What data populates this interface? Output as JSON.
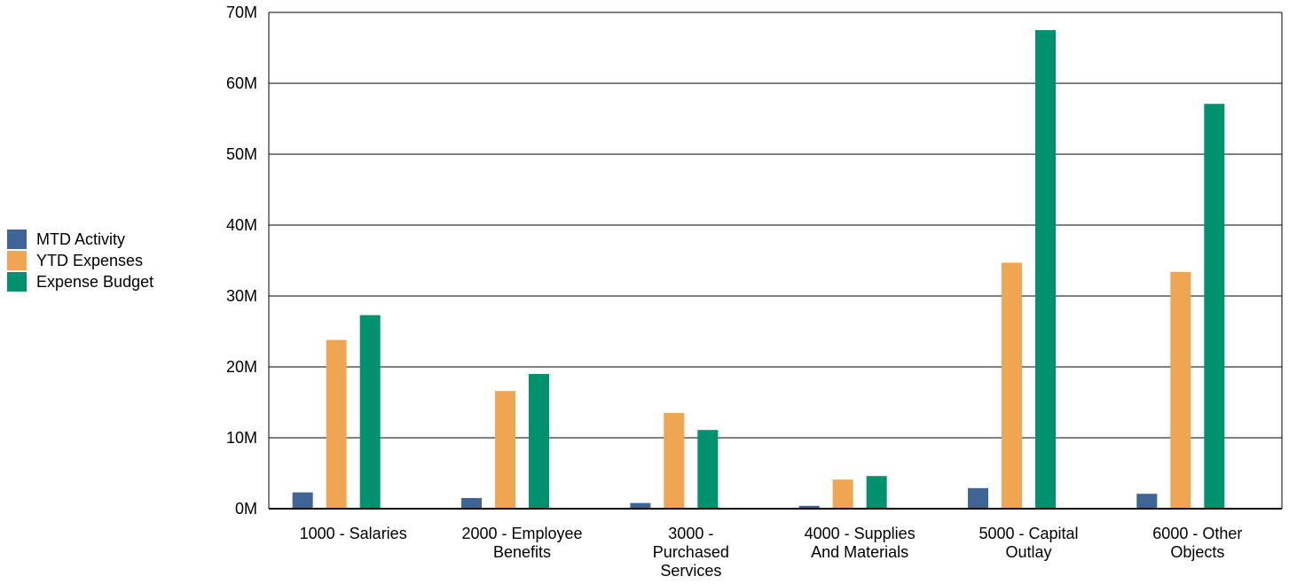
{
  "chart_data": {
    "type": "bar",
    "categories": [
      [
        "1000 - Salaries"
      ],
      [
        "2000 - Employee",
        "Benefits"
      ],
      [
        "3000 -",
        "Purchased",
        "Services"
      ],
      [
        "4000 - Supplies",
        "And Materials"
      ],
      [
        "5000 - Capital",
        "Outlay"
      ],
      [
        "6000 - Other",
        "Objects"
      ]
    ],
    "series": [
      {
        "name": "MTD Activity",
        "color": "#3e6596",
        "values": [
          2.3,
          1.5,
          0.8,
          0.4,
          2.9,
          2.1
        ]
      },
      {
        "name": "YTD Expenses",
        "color": "#efa551",
        "values": [
          23.8,
          16.6,
          13.5,
          4.1,
          34.7,
          33.4
        ]
      },
      {
        "name": "Expense Budget",
        "color": "#00916e",
        "values": [
          27.3,
          19.0,
          11.1,
          4.6,
          67.5,
          57.1
        ]
      }
    ],
    "yticks": [
      "0M",
      "10M",
      "20M",
      "30M",
      "40M",
      "50M",
      "60M",
      "70M"
    ],
    "ylim": [
      0,
      70
    ],
    "grid": true,
    "legend_position": "left"
  }
}
